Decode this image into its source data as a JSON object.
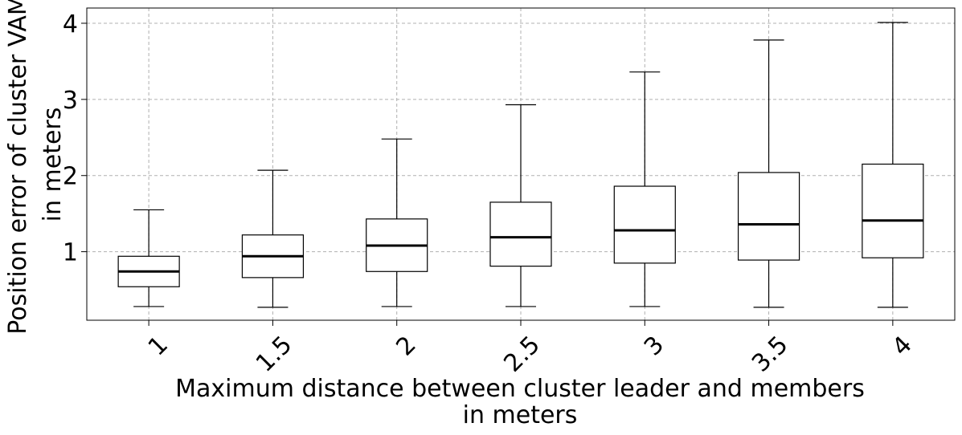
{
  "chart_data": {
    "type": "box",
    "categories": [
      "1",
      "1.5",
      "2",
      "2.5",
      "3",
      "3.5",
      "4"
    ],
    "xlabel_lines": [
      "Maximum distance between cluster leader and members",
      "in meters"
    ],
    "ylabel_lines": [
      "Position error of cluster VAM",
      "in meters"
    ],
    "ylim": [
      0.1,
      4.2
    ],
    "yticks": [
      1,
      2,
      3,
      4
    ],
    "ytick_labels": [
      "1",
      "2",
      "3",
      "4"
    ],
    "grid": true,
    "boxes": [
      {
        "category": "1",
        "whisker_low": 0.28,
        "q1": 0.54,
        "median": 0.74,
        "q3": 0.94,
        "whisker_high": 1.55
      },
      {
        "category": "1.5",
        "whisker_low": 0.27,
        "q1": 0.66,
        "median": 0.94,
        "q3": 1.22,
        "whisker_high": 2.07
      },
      {
        "category": "2",
        "whisker_low": 0.28,
        "q1": 0.74,
        "median": 1.08,
        "q3": 1.43,
        "whisker_high": 2.48
      },
      {
        "category": "2.5",
        "whisker_low": 0.28,
        "q1": 0.81,
        "median": 1.19,
        "q3": 1.65,
        "whisker_high": 2.93
      },
      {
        "category": "3",
        "whisker_low": 0.28,
        "q1": 0.85,
        "median": 1.28,
        "q3": 1.86,
        "whisker_high": 3.36
      },
      {
        "category": "3.5",
        "whisker_low": 0.27,
        "q1": 0.89,
        "median": 1.36,
        "q3": 2.04,
        "whisker_high": 3.78
      },
      {
        "category": "4",
        "whisker_low": 0.27,
        "q1": 0.92,
        "median": 1.41,
        "q3": 2.15,
        "whisker_high": 4.01
      }
    ],
    "colors": {
      "box_edge": "#000000",
      "median": "#000000",
      "grid": "#b0b0b0",
      "background": "#ffffff"
    }
  }
}
